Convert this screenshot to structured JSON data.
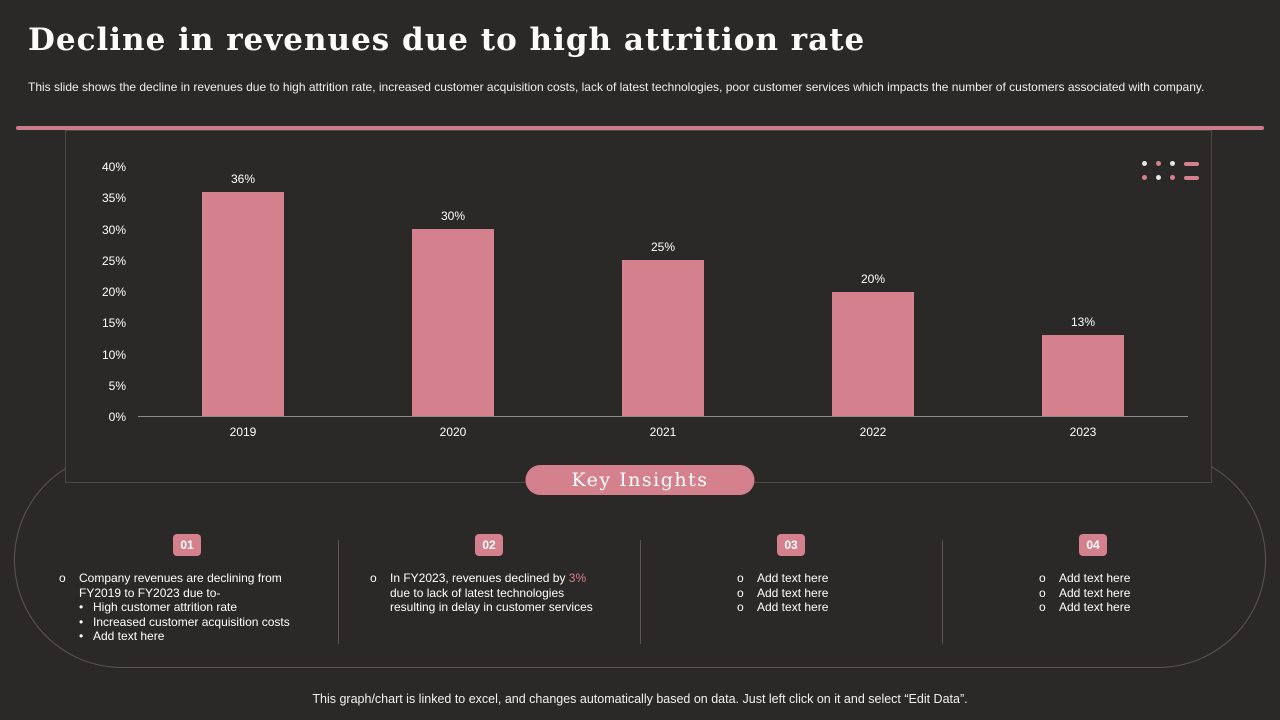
{
  "slide": {
    "title": "Decline in revenues due to high attrition rate",
    "subtitle": "This slide shows the decline in revenues due to high attrition rate,  increased customer acquisition costs, lack of latest technologies, poor customer services which impacts the number of customers associated with company.",
    "footer": "This graph/chart is linked to excel, and changes automatically based on data. Just left click on it and select “Edit Data”."
  },
  "chart_data": {
    "type": "bar",
    "title": "",
    "xlabel": "",
    "ylabel": "",
    "categories": [
      "2019",
      "2020",
      "2021",
      "2022",
      "2023"
    ],
    "values": [
      36,
      30,
      25,
      20,
      13
    ],
    "data_labels": [
      "36%",
      "30%",
      "25%",
      "20%",
      "13%"
    ],
    "ylim": [
      0,
      40
    ],
    "ytick_step": 5,
    "ytick_labels": [
      "40%",
      "35%",
      "30%",
      "25%",
      "20%",
      "15%",
      "10%",
      "5%",
      "0%"
    ],
    "bar_color": "#d5818d",
    "grid": false,
    "legend": false
  },
  "key_insights": {
    "heading": "Key Insights",
    "items": [
      {
        "number": "01",
        "bullet": "Company revenues are declining from FY2019 to FY2023 due to-",
        "sub_bullets": [
          "High customer attrition rate",
          "Increased customer acquisition costs",
          "Add text here"
        ]
      },
      {
        "number": "02",
        "bullet_prefix": "In FY2023, revenues declined by ",
        "bullet_highlight": "3%",
        "bullet_suffix": " due to lack of latest technologies resulting in delay in customer services"
      },
      {
        "number": "03",
        "bullets": [
          "Add text here",
          "Add text here",
          "Add text here"
        ]
      },
      {
        "number": "04",
        "bullets": [
          "Add text here",
          "Add text here",
          "Add text here"
        ]
      }
    ]
  },
  "colors": {
    "background": "#2b2927",
    "accent_pink": "#d5818d",
    "text": "#ffffff",
    "border": "#5b5651"
  }
}
